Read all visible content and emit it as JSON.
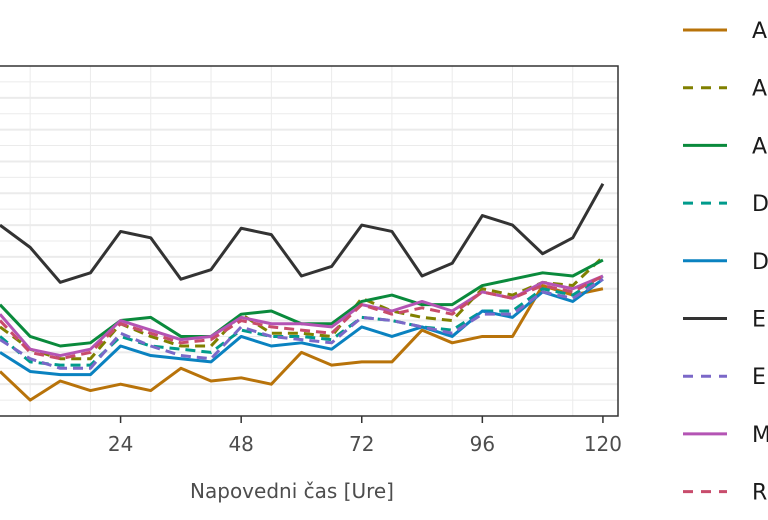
{
  "chart_data": {
    "type": "line",
    "title": "",
    "xlabel": "Napovedni čas [Ure]",
    "ylabel": "",
    "xlim": [
      0,
      123
    ],
    "ylim": [
      0.3,
      1.4
    ],
    "xticks": [
      24,
      48,
      72,
      96,
      120
    ],
    "xtick_labels": [
      "24",
      "48",
      "72",
      "96",
      "120"
    ],
    "grid": true,
    "legend_position": "right",
    "x": [
      0,
      6,
      12,
      18,
      24,
      30,
      36,
      42,
      48,
      54,
      60,
      66,
      72,
      78,
      84,
      90,
      96,
      102,
      108,
      114,
      120
    ],
    "series": [
      {
        "name": "A",
        "color": "#b8730a",
        "dash": "solid",
        "values": [
          0.44,
          0.35,
          0.41,
          0.38,
          0.4,
          0.38,
          0.45,
          0.41,
          0.42,
          0.4,
          0.5,
          0.46,
          0.47,
          0.47,
          0.57,
          0.53,
          0.55,
          0.55,
          0.71,
          0.68,
          0.7
        ]
      },
      {
        "name": "A",
        "color": "#808000",
        "dash": "dashed",
        "values": [
          0.58,
          0.51,
          0.48,
          0.48,
          0.59,
          0.55,
          0.52,
          0.52,
          0.62,
          0.56,
          0.56,
          0.55,
          0.67,
          0.63,
          0.61,
          0.6,
          0.7,
          0.68,
          0.72,
          0.71,
          0.8
        ]
      },
      {
        "name": "A",
        "color": "#0a8a3c",
        "dash": "solid",
        "values": [
          0.65,
          0.55,
          0.52,
          0.53,
          0.6,
          0.61,
          0.55,
          0.55,
          0.62,
          0.63,
          0.59,
          0.59,
          0.66,
          0.68,
          0.65,
          0.65,
          0.71,
          0.73,
          0.75,
          0.74,
          0.79
        ]
      },
      {
        "name": "D",
        "color": "#009b8c",
        "dash": "dashed",
        "values": [
          0.55,
          0.47,
          0.46,
          0.46,
          0.55,
          0.52,
          0.51,
          0.5,
          0.57,
          0.55,
          0.55,
          0.54,
          0.61,
          0.6,
          0.58,
          0.57,
          0.63,
          0.63,
          0.7,
          0.68,
          0.74
        ]
      },
      {
        "name": "D",
        "color": "#0a82c0",
        "dash": "solid",
        "values": [
          0.5,
          0.44,
          0.43,
          0.43,
          0.52,
          0.49,
          0.48,
          0.47,
          0.55,
          0.52,
          0.53,
          0.51,
          0.58,
          0.55,
          0.58,
          0.55,
          0.63,
          0.61,
          0.69,
          0.66,
          0.73
        ]
      },
      {
        "name": "E",
        "color": "#333333",
        "dash": "solid",
        "values": [
          0.9,
          0.83,
          0.72,
          0.75,
          0.88,
          0.86,
          0.73,
          0.76,
          0.89,
          0.87,
          0.74,
          0.77,
          0.9,
          0.88,
          0.74,
          0.78,
          0.93,
          0.9,
          0.81,
          0.86,
          1.03
        ]
      },
      {
        "name": "E",
        "color": "#7b68c8",
        "dash": "dashed",
        "values": [
          0.54,
          0.48,
          0.45,
          0.45,
          0.56,
          0.52,
          0.49,
          0.48,
          0.58,
          0.55,
          0.54,
          0.53,
          0.61,
          0.6,
          0.58,
          0.56,
          0.62,
          0.62,
          0.69,
          0.67,
          0.73
        ]
      },
      {
        "name": "M",
        "color": "#b454b4",
        "dash": "solid",
        "values": [
          0.62,
          0.51,
          0.49,
          0.51,
          0.6,
          0.57,
          0.54,
          0.55,
          0.61,
          0.59,
          0.59,
          0.58,
          0.65,
          0.63,
          0.66,
          0.63,
          0.69,
          0.67,
          0.72,
          0.7,
          0.74
        ]
      },
      {
        "name": "R",
        "color": "#c84c6c",
        "dash": "dashed",
        "values": [
          0.6,
          0.5,
          0.48,
          0.5,
          0.59,
          0.56,
          0.53,
          0.54,
          0.6,
          0.58,
          0.57,
          0.56,
          0.65,
          0.62,
          0.64,
          0.62,
          0.69,
          0.67,
          0.71,
          0.69,
          0.74
        ]
      }
    ]
  }
}
